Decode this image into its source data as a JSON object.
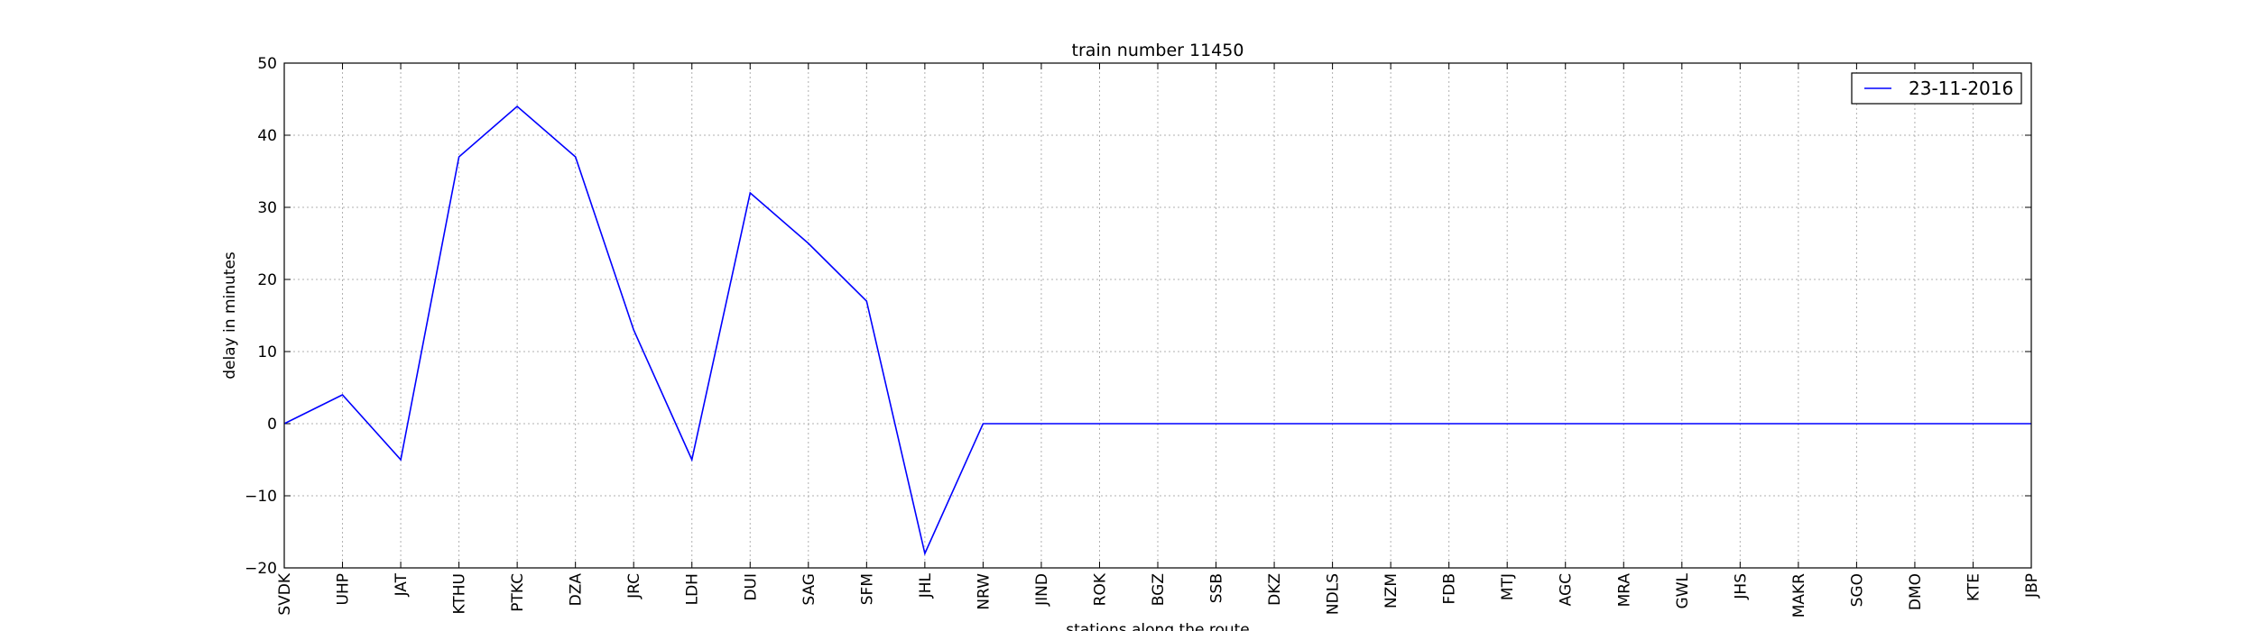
{
  "chart_data": {
    "type": "line",
    "title": "train number 11450",
    "xlabel": "stations along the route",
    "ylabel": "delay in minutes",
    "ylim": [
      -20,
      50
    ],
    "yticks": [
      -20,
      -10,
      0,
      10,
      20,
      30,
      40,
      50
    ],
    "grid": true,
    "legend_position": "top-right",
    "categories": [
      "SVDK",
      "UHP",
      "JAT",
      "KTHU",
      "PTKC",
      "DZA",
      "JRC",
      "LDH",
      "DUI",
      "SAG",
      "SFM",
      "JHL",
      "NRW",
      "JIND",
      "ROK",
      "BGZ",
      "SSB",
      "DKZ",
      "NDLS",
      "NZM",
      "FDB",
      "MTJ",
      "AGC",
      "MRA",
      "GWL",
      "JHS",
      "MAKR",
      "SGO",
      "DMO",
      "KTE",
      "JBP"
    ],
    "series": [
      {
        "name": "23-11-2016",
        "color": "#0000ff",
        "values": [
          0,
          4,
          -5,
          37,
          44,
          37,
          13,
          -5,
          32,
          25,
          17,
          -18,
          0,
          0,
          0,
          0,
          0,
          0,
          0,
          0,
          0,
          0,
          0,
          0,
          0,
          0,
          0,
          0,
          0,
          0,
          0
        ]
      }
    ]
  }
}
